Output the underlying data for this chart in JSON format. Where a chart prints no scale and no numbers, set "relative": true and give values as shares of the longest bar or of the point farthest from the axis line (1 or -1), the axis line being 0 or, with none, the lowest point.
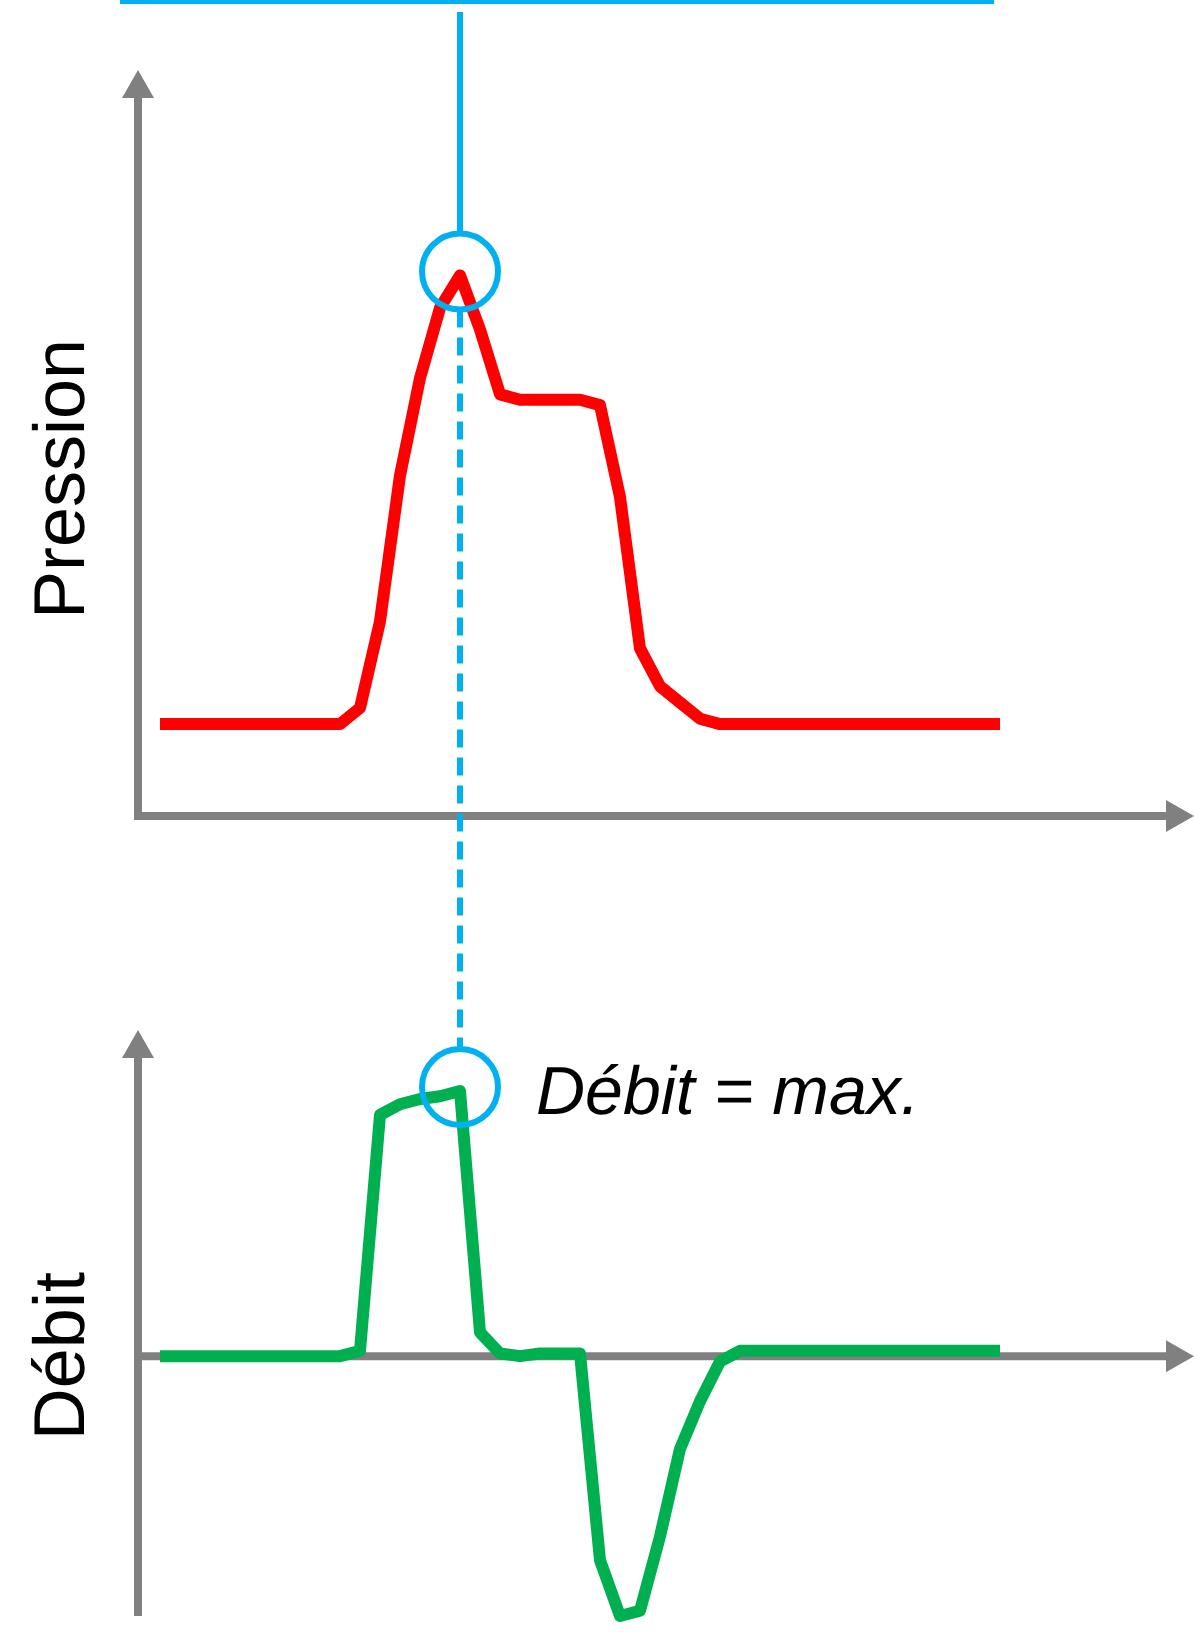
{
  "chart_data": [
    {
      "type": "line",
      "ylabel": "Pression",
      "relative": true,
      "tick_labels": false,
      "marker": "none",
      "legend": false,
      "categories": [
        null,
        null,
        null,
        null,
        null,
        null,
        null,
        null,
        null,
        null,
        null,
        null,
        null,
        null,
        null,
        null,
        null,
        null,
        null,
        null,
        null,
        null,
        null,
        null,
        null,
        null,
        null,
        null,
        null,
        null,
        null,
        null,
        null,
        null,
        null,
        null,
        null,
        null,
        null,
        null,
        null,
        null,
        null
      ],
      "series": [
        {
          "color": "#ff0000",
          "values": [
            0.17,
            0.17,
            0.17,
            0.17,
            0.17,
            0.17,
            0.17,
            0.17,
            0.17,
            0.17,
            0.2,
            0.36,
            0.63,
            0.81,
            0.94,
            1,
            0.9,
            0.78,
            0.77,
            0.77,
            0.77,
            0.77,
            0.76,
            0.59,
            0.31,
            0.24,
            0.21,
            0.18,
            0.17,
            0.17,
            0.17,
            0.17,
            0.17,
            0.17,
            0.17,
            0.17,
            0.17,
            0.17,
            0.17,
            0.17,
            0.17,
            0.17,
            0.17
          ]
        }
      ]
    },
    {
      "type": "line",
      "ylabel": "Débit",
      "relative": true,
      "tick_labels": false,
      "marker": "none",
      "legend": false,
      "annotations": [
        "Débit = max."
      ],
      "categories": [
        null,
        null,
        null,
        null,
        null,
        null,
        null,
        null,
        null,
        null,
        null,
        null,
        null,
        null,
        null,
        null,
        null,
        null,
        null,
        null,
        null,
        null,
        null,
        null,
        null,
        null,
        null,
        null,
        null,
        null,
        null,
        null,
        null,
        null,
        null,
        null,
        null,
        null,
        null,
        null,
        null,
        null,
        null
      ],
      "series": [
        {
          "color": "#00b050",
          "values": [
            0,
            0,
            0,
            0,
            0,
            0,
            0,
            0,
            0,
            0,
            0.02,
            0.91,
            0.95,
            0.97,
            0.98,
            1,
            0.09,
            0.01,
            0,
            0.01,
            0.01,
            0.01,
            -0.77,
            -0.98,
            -0.96,
            -0.68,
            -0.35,
            -0.17,
            -0.02,
            0.02,
            0.02,
            0.02,
            0.02,
            0.02,
            0.02,
            0.02,
            0.02,
            0.02,
            0.02,
            0.02,
            0.02,
            0.02,
            0.02
          ]
        }
      ]
    }
  ]
}
